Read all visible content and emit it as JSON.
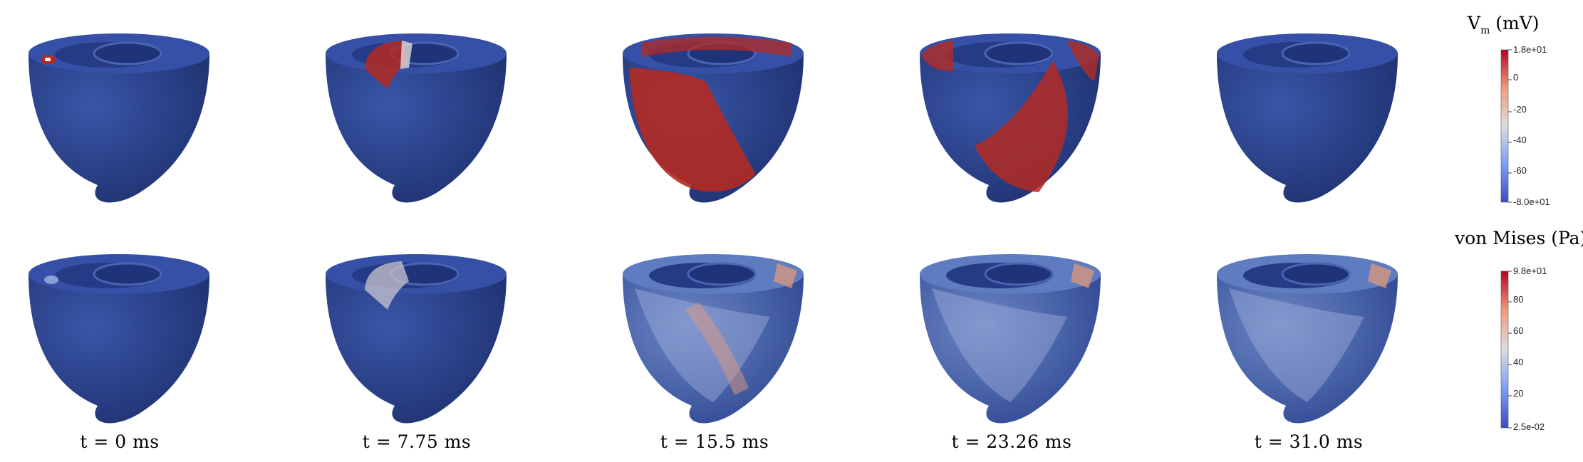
{
  "time_labels": [
    "t = 0 ms",
    "t = 7.75 ms",
    "t = 15.5 ms",
    "t = 23.26 ms",
    "t = 31.0 ms"
  ],
  "colorbars": {
    "vm": {
      "title_main": "V",
      "title_sub": "m",
      "title_unit": "(mV)",
      "ticks": [
        "1.8e+01",
        "0",
        "-20",
        "-40",
        "-60",
        "-8.0e+01"
      ]
    },
    "vm_von_mises": {
      "title": "von Mises (Pa)",
      "ticks": [
        "9.8e+01",
        "80",
        "60",
        "40",
        "20",
        "2.5e-02"
      ]
    }
  },
  "colors": {
    "tissue_blue": "#2f4a9c",
    "tissue_dark": "#1c2f6e",
    "excited_red": "#b42a22",
    "mid_white": "#dcdcdc",
    "stress_blue": "#5a78be"
  }
}
